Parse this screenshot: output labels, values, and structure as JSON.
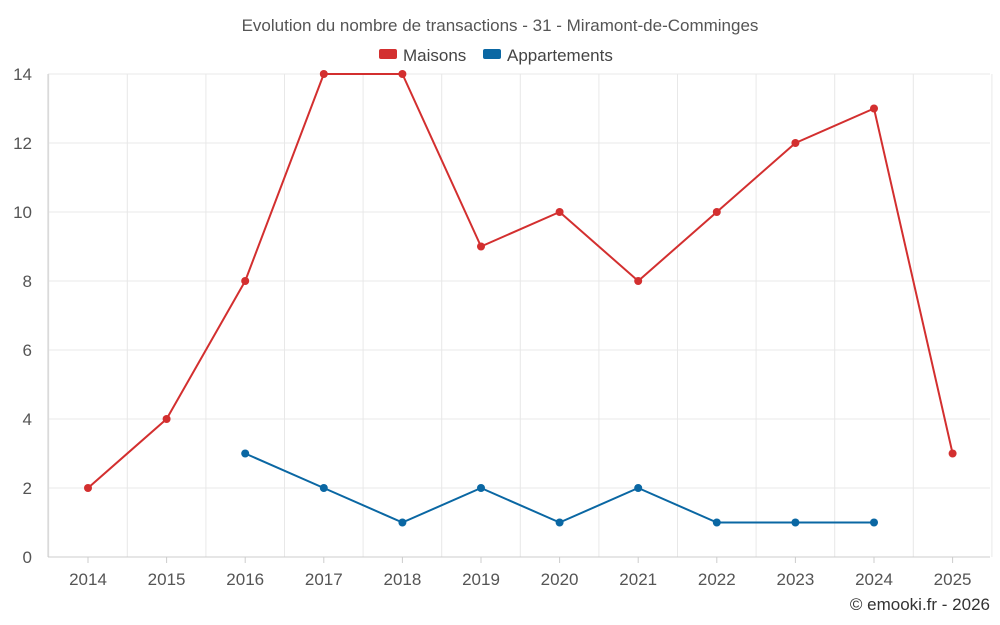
{
  "chart_data": {
    "type": "line",
    "title": "Evolution du nombre de transactions - 31 - Miramont-de-Comminges",
    "categories": [
      "2014",
      "2015",
      "2016",
      "2017",
      "2018",
      "2019",
      "2020",
      "2021",
      "2022",
      "2023",
      "2024",
      "2025"
    ],
    "series": [
      {
        "name": "Maisons",
        "color": "#d32f2f",
        "values": [
          2,
          4,
          8,
          14,
          14,
          9,
          10,
          8,
          10,
          12,
          13,
          3
        ]
      },
      {
        "name": "Appartements",
        "color": "#0a67a3",
        "values": [
          null,
          null,
          3,
          2,
          1,
          2,
          1,
          2,
          1,
          1,
          1,
          null
        ]
      }
    ],
    "ylim": [
      0,
      14
    ],
    "yticks": [
      0,
      2,
      4,
      6,
      8,
      10,
      12,
      14
    ],
    "xlabel": "",
    "ylabel": "",
    "grid": true,
    "legend": "top-center"
  },
  "credit": "© emooki.fr - 2026"
}
